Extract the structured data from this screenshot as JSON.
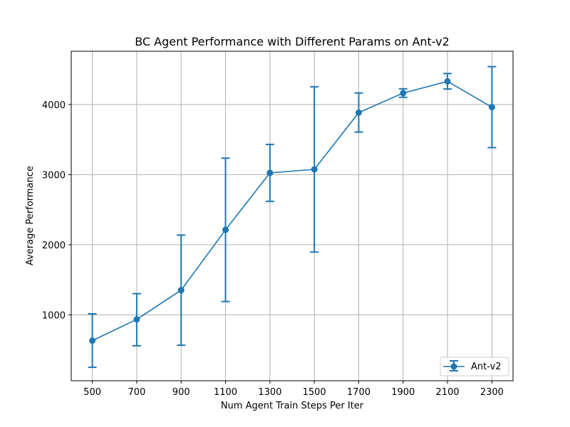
{
  "chart_data": {
    "type": "line",
    "title": "BC Agent Performance with Different Params on Ant-v2",
    "xlabel": "Num Agent Train Steps Per Iter",
    "ylabel": "Average Performance",
    "grid": true,
    "legend_position": "lower-right",
    "xlim": [
      405,
      2395
    ],
    "ylim": [
      60,
      4760
    ],
    "x_ticks": [
      500,
      700,
      900,
      1100,
      1300,
      1500,
      1700,
      1900,
      2100,
      2300
    ],
    "y_ticks": [
      1000,
      2000,
      3000,
      4000
    ],
    "color": "#1f77b4",
    "series": [
      {
        "name": "Ant-v2",
        "x": [
          500,
          700,
          900,
          1100,
          1300,
          1500,
          1700,
          1900,
          2100,
          2300
        ],
        "y": [
          632,
          935,
          1352,
          2213,
          3025,
          3075,
          3885,
          4163,
          4330,
          3962
        ],
        "err_low": [
          252,
          559,
          567,
          1190,
          2619,
          1895,
          3607,
          4103,
          4221,
          3385
        ],
        "err_high": [
          1014,
          1302,
          2137,
          3235,
          3431,
          4253,
          4165,
          4224,
          4442,
          4540
        ]
      }
    ]
  }
}
